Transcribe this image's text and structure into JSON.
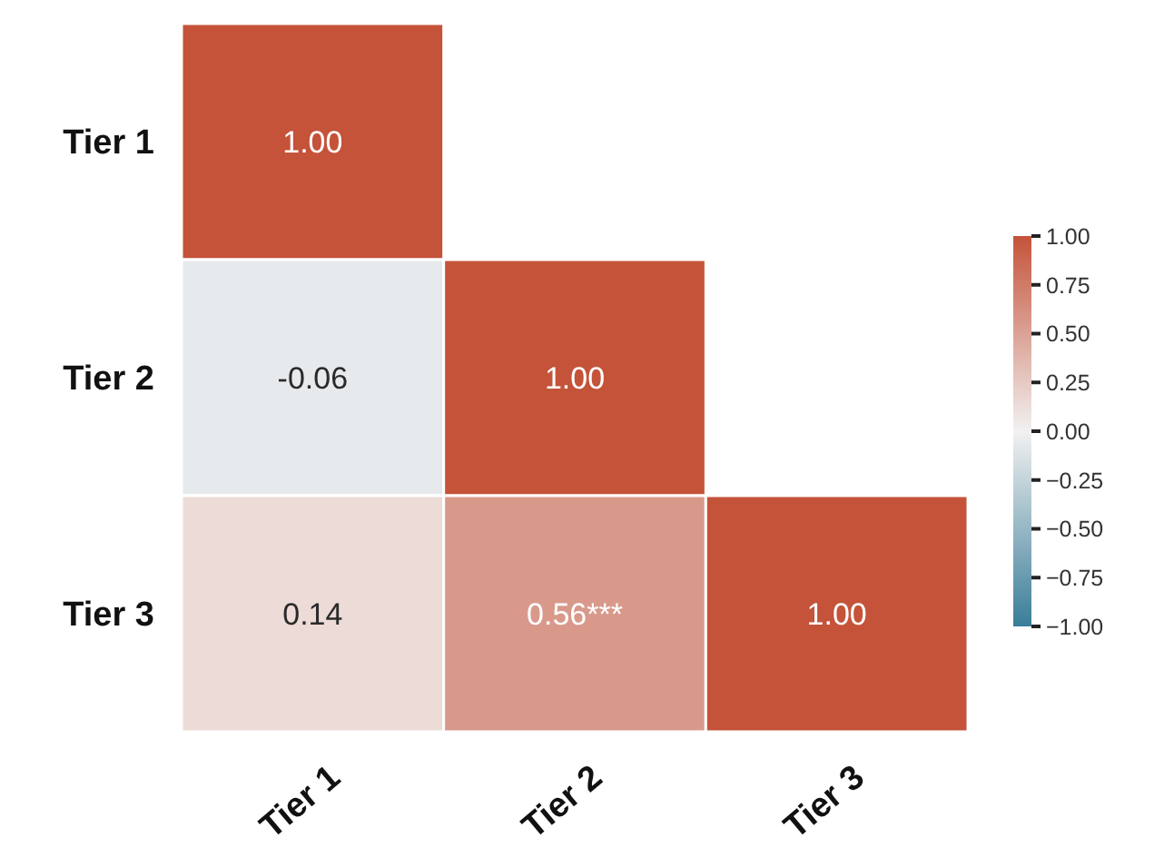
{
  "chart_data": {
    "type": "heatmap",
    "categories": [
      "Tier 1",
      "Tier 2",
      "Tier 3"
    ],
    "y_categories": [
      "Tier 1",
      "Tier 2",
      "Tier 3"
    ],
    "cells": [
      [
        1.0,
        null,
        null
      ],
      [
        -0.06,
        1.0,
        null
      ],
      [
        0.14,
        0.56,
        1.0
      ]
    ],
    "cell_labels": [
      [
        "1.00",
        null,
        null
      ],
      [
        "-0.06",
        "1.00",
        null
      ],
      [
        "0.14",
        "0.56***",
        "1.00"
      ]
    ],
    "clim": [
      -1,
      1
    ],
    "cticks": [
      {
        "value": 1,
        "label": "1.00"
      },
      {
        "value": 0.75,
        "label": "0.75"
      },
      {
        "value": 0.5,
        "label": "0.50"
      },
      {
        "value": 0.25,
        "label": "0.25"
      },
      {
        "value": 0,
        "label": "0.00"
      },
      {
        "value": -0.25,
        "label": "−0.25"
      },
      {
        "value": -0.5,
        "label": "−0.50"
      },
      {
        "value": -0.75,
        "label": "−0.75"
      },
      {
        "value": -1,
        "label": "−1.00"
      }
    ]
  }
}
